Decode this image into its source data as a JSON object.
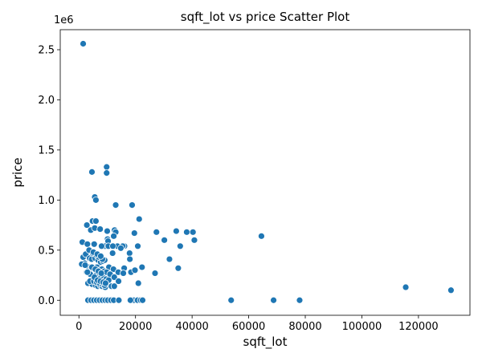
{
  "chart_data": {
    "type": "scatter",
    "title": "sqft_lot vs price Scatter Plot",
    "xlabel": "sqft_lot",
    "ylabel": "price",
    "y_offset_label": "1e6",
    "xlim": [
      -6600,
      138200
    ],
    "ylim": [
      -150000,
      2700000
    ],
    "xticks": [
      0,
      20000,
      40000,
      60000,
      80000,
      100000,
      120000
    ],
    "yticks": [
      0,
      500000,
      1000000,
      1500000,
      2000000,
      2500000
    ],
    "xtick_labels": [
      "0",
      "20000",
      "40000",
      "60000",
      "80000",
      "100000",
      "120000"
    ],
    "ytick_labels": [
      "0.0",
      "0.5",
      "1.0",
      "1.5",
      "2.0",
      "2.5"
    ],
    "grid": false,
    "marker_color": "#1f77b4",
    "x": [
      1500,
      9800,
      4600,
      9800,
      5600,
      6000,
      13000,
      18800,
      21300,
      4800,
      6000,
      2800,
      4200,
      5600,
      7500,
      10000,
      12600,
      64500,
      34400,
      38100,
      40300,
      27400,
      13000,
      12300,
      10100,
      13600,
      16100,
      19600,
      20800,
      10300,
      30200,
      9200,
      15500,
      35800,
      40800,
      1200,
      3000,
      5400,
      8000,
      10400,
      12000,
      14800,
      17900,
      11900,
      18000,
      32000,
      16000,
      35100,
      26900,
      22300,
      1500,
      2400,
      3800,
      4500,
      5700,
      6800,
      7700,
      8500,
      9100,
      10600,
      12200,
      13900,
      15700,
      18400,
      19800,
      21000,
      2000,
      3500,
      4100,
      5200,
      6400,
      7200,
      8100,
      9000,
      9800,
      11000,
      12500,
      1000,
      2700,
      4300,
      5000,
      6100,
      7000,
      7800,
      8800,
      9600,
      10500,
      3200,
      4700,
      5900,
      6700,
      7500,
      8200,
      9300,
      3900,
      5300,
      6300,
      7300,
      8400,
      9100,
      11500,
      14000,
      4000,
      5500,
      6600,
      7600,
      8600,
      9400,
      4600,
      5800,
      6900,
      7900,
      4900,
      6200,
      7100,
      8300,
      3000,
      12500,
      2200,
      21000,
      3600,
      5100,
      6500,
      7700,
      3300,
      4500,
      5600,
      6800,
      8000,
      9500,
      10700,
      4400,
      5400,
      6400,
      7400,
      8700,
      9900,
      3200,
      4300,
      5300,
      6300,
      7300,
      8300,
      9300,
      10200,
      11300,
      12300,
      14100,
      18600,
      19400,
      20700,
      21800,
      22500,
      18200,
      53800,
      68800,
      78000,
      115500,
      131500
    ],
    "y": [
      2560000,
      1330000,
      1280000,
      1270000,
      1030000,
      1000000,
      950000,
      950000,
      810000,
      790000,
      790000,
      750000,
      700000,
      720000,
      710000,
      690000,
      700000,
      640000,
      690000,
      680000,
      680000,
      680000,
      680000,
      640000,
      610000,
      540000,
      540000,
      670000,
      540000,
      590000,
      600000,
      540000,
      540000,
      540000,
      600000,
      580000,
      560000,
      560000,
      540000,
      540000,
      540000,
      520000,
      470000,
      470000,
      410000,
      410000,
      320000,
      320000,
      270000,
      330000,
      430000,
      460000,
      420000,
      410000,
      420000,
      400000,
      380000,
      390000,
      400000,
      330000,
      310000,
      280000,
      270000,
      280000,
      300000,
      170000,
      370000,
      330000,
      300000,
      320000,
      330000,
      300000,
      310000,
      290000,
      280000,
      260000,
      230000,
      360000,
      280000,
      250000,
      240000,
      250000,
      240000,
      230000,
      220000,
      210000,
      200000,
      170000,
      160000,
      150000,
      140000,
      150000,
      140000,
      130000,
      190000,
      190000,
      180000,
      170000,
      160000,
      150000,
      140000,
      190000,
      260000,
      230000,
      200000,
      190000,
      180000,
      170000,
      330000,
      310000,
      290000,
      270000,
      470000,
      450000,
      430000,
      410000,
      280000,
      140000,
      350000,
      170000,
      500000,
      480000,
      460000,
      440000,
      0,
      0,
      0,
      0,
      0,
      0,
      0,
      0,
      0,
      0,
      0,
      0,
      0,
      0,
      0,
      0,
      0,
      0,
      0,
      0,
      0,
      0,
      0,
      0,
      0,
      0,
      0,
      0,
      0,
      0,
      0,
      0,
      0,
      130000,
      100000
    ]
  }
}
